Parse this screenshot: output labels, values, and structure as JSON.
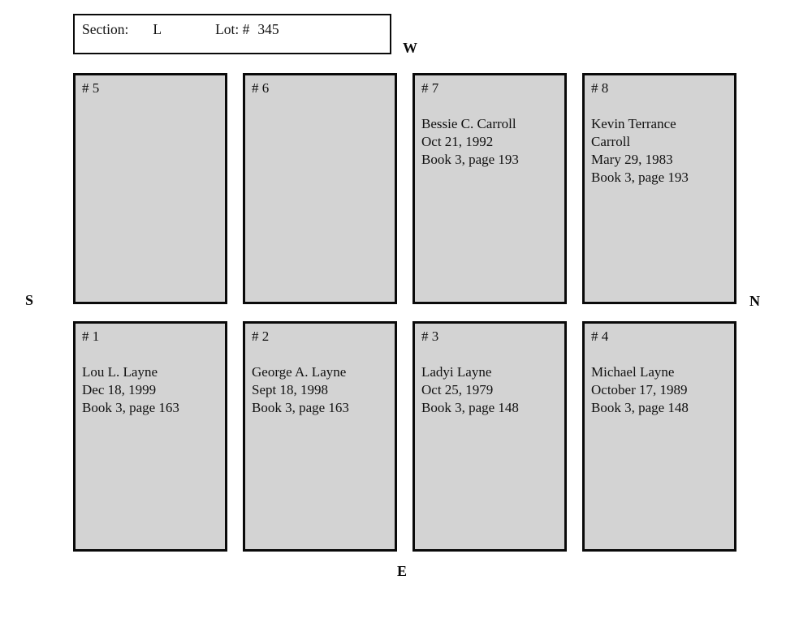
{
  "header": {
    "section_label": "Section:",
    "section_value": "L",
    "lot_label": "Lot: #",
    "lot_value": "345"
  },
  "compass": {
    "west": "W",
    "south": "S",
    "north": "N",
    "east": "E"
  },
  "plots": [
    {
      "number": "# 5",
      "lines": []
    },
    {
      "number": "# 6",
      "lines": []
    },
    {
      "number": "# 7",
      "lines": [
        "Bessie C. Carroll",
        "Oct 21, 1992",
        "Book 3, page 193"
      ]
    },
    {
      "number": "# 8",
      "lines": [
        "Kevin Terrance",
        "Carroll",
        "Mary 29, 1983",
        "Book 3, page 193"
      ]
    },
    {
      "number": "# 1",
      "lines": [
        "Lou L. Layne",
        "Dec 18, 1999",
        "Book 3, page 163"
      ]
    },
    {
      "number": "# 2",
      "lines": [
        "George A. Layne",
        "Sept 18, 1998",
        "Book 3, page 163"
      ]
    },
    {
      "number": "# 3",
      "lines": [
        "Ladyi Layne",
        "Oct 25, 1979",
        "Book 3, page 148"
      ]
    },
    {
      "number": "# 4",
      "lines": [
        "Michael Layne",
        "October 17, 1989",
        "Book 3, page 148"
      ]
    }
  ],
  "colors": {
    "plot_fill": "#d3d3d3",
    "border": "#0a0a0a",
    "background": "#ffffff"
  }
}
